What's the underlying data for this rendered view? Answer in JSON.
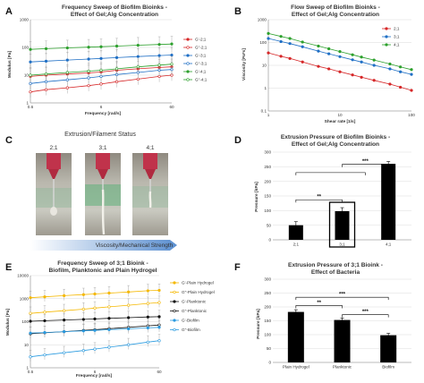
{
  "panels": {
    "A": {
      "letter": "A",
      "title_lines": [
        "Frequency Sweep of Biofilm Bioinks -",
        "Effect of Gel;Alg Concentration"
      ],
      "xlabel": "Frequency [rad/s]",
      "ylabel": "Modulus [Pa]"
    },
    "B": {
      "letter": "B",
      "title_lines": [
        "Flow Sweep of Biofilm Bioinks -",
        "Effect of Gel;Alg Concentration"
      ],
      "xlabel": "Shear rate [1/s]",
      "ylabel": "Viscosity [Pa*s]"
    },
    "C": {
      "letter": "C",
      "title": "Extrusion/Filament Status",
      "labels": [
        "2;1",
        "3;1",
        "4;1"
      ],
      "arrow_label": "Viscosity/Mechanical Strength"
    },
    "D": {
      "letter": "D",
      "title_lines": [
        "Extrusion Pressure of Biofilm Bioinks -",
        "Effect of Gel;Alg Concentration"
      ],
      "ylabel": "Pressure [kPa]",
      "sig": [
        "**",
        "***"
      ]
    },
    "E": {
      "letter": "E",
      "title_lines": [
        "Frequency Sweep of 3;1 Bioink -",
        "Biofilm, Planktonic and Plain Hydrogel"
      ],
      "xlabel": "Frequency [rad/s]",
      "ylabel": "Modulus [Pa]"
    },
    "F": {
      "letter": "F",
      "title_lines": [
        "Extrusion Pressure of 3;1 Bioink -",
        "Effect of Bacteria"
      ],
      "ylabel": "Pressure [kPa]",
      "sig": [
        "**",
        "***",
        "***"
      ]
    }
  },
  "colors": {
    "red": "#d62728",
    "blue": "#1f6fc5",
    "green": "#2ca02c",
    "gold": "#f5b800",
    "black": "#111111",
    "skyblue": "#2b9be0",
    "gray": "#444444"
  },
  "chart_data": [
    {
      "panel": "A",
      "type": "line",
      "x": [
        0.6,
        1,
        2,
        4,
        6,
        10,
        20,
        40,
        60
      ],
      "xlim": [
        0.6,
        60
      ],
      "xscale": "log",
      "xticks": [
        0.6,
        6,
        60
      ],
      "ylim": [
        1,
        1000
      ],
      "yscale": "log",
      "yticks": [
        1,
        10,
        100,
        1000
      ],
      "legend_position": "right",
      "series": [
        {
          "name": "G'-2;1",
          "color": "#d62728",
          "marker": "filled",
          "values": [
            9,
            10,
            11,
            12,
            13,
            15,
            17,
            19,
            20
          ]
        },
        {
          "name": "G''-2;1",
          "color": "#d62728",
          "marker": "open",
          "values": [
            2.5,
            3,
            3.5,
            4.2,
            4.8,
            5.8,
            7.2,
            9,
            10
          ]
        },
        {
          "name": "G'-3;1",
          "color": "#1f6fc5",
          "marker": "filled",
          "values": [
            30,
            32,
            35,
            38,
            40,
            43,
            47,
            51,
            53
          ]
        },
        {
          "name": "G''-3;1",
          "color": "#1f6fc5",
          "marker": "open",
          "values": [
            5,
            5.8,
            6.8,
            8,
            9,
            10.5,
            12.5,
            15,
            16
          ]
        },
        {
          "name": "G'-4;1",
          "color": "#2ca02c",
          "marker": "filled",
          "values": [
            85,
            90,
            96,
            102,
            106,
            112,
            120,
            128,
            133
          ]
        },
        {
          "name": "G''-4;1",
          "color": "#2ca02c",
          "marker": "open",
          "values": [
            10,
            11,
            12.5,
            14,
            15,
            17,
            20,
            23,
            25
          ]
        }
      ]
    },
    {
      "panel": "B",
      "type": "line",
      "x": [
        1,
        1.5,
        2,
        3,
        5,
        7,
        10,
        15,
        20,
        30,
        50,
        70,
        100
      ],
      "xlim": [
        1,
        100
      ],
      "xscale": "log",
      "xticks": [
        1,
        10,
        100
      ],
      "ylim": [
        0.1,
        1000
      ],
      "yscale": "log",
      "yticks": [
        0.1,
        1,
        10,
        100,
        1000
      ],
      "legend_position": "top-right",
      "series": [
        {
          "name": "2;1",
          "color": "#d62728",
          "values": [
            35,
            25,
            20,
            14,
            9,
            7,
            5.2,
            3.8,
            3,
            2.2,
            1.5,
            1.1,
            0.8
          ]
        },
        {
          "name": "3;1",
          "color": "#1f6fc5",
          "values": [
            150,
            110,
            90,
            65,
            42,
            32,
            24,
            17.5,
            14,
            10,
            7,
            5.2,
            4
          ]
        },
        {
          "name": "4;1",
          "color": "#2ca02c",
          "values": [
            250,
            185,
            150,
            105,
            70,
            53,
            40,
            29,
            23,
            17,
            11.5,
            8.5,
            6.5
          ]
        }
      ]
    },
    {
      "panel": "D",
      "type": "bar",
      "categories": [
        "2;1",
        "3;1",
        "4;1"
      ],
      "values": [
        50,
        98,
        260
      ],
      "errors": [
        12,
        12,
        8
      ],
      "ylim": [
        0,
        300
      ],
      "yticks": [
        0,
        50,
        100,
        150,
        200,
        250,
        300
      ],
      "highlighted_category": "3;1"
    },
    {
      "panel": "E",
      "type": "line",
      "x": [
        0.6,
        1,
        2,
        4,
        6,
        10,
        20,
        40,
        60
      ],
      "xlim": [
        0.6,
        60
      ],
      "xscale": "log",
      "xticks": [
        0.6,
        6,
        60
      ],
      "ylim": [
        1,
        10000
      ],
      "yscale": "log",
      "yticks": [
        1,
        10,
        100,
        1000,
        10000
      ],
      "legend_position": "right",
      "series": [
        {
          "name": "G'-Plain Hydrogel",
          "color": "#f5b800",
          "marker": "filled",
          "values": [
            1100,
            1200,
            1350,
            1500,
            1600,
            1750,
            1950,
            2200,
            2300
          ]
        },
        {
          "name": "G''-Plain Hydrogel",
          "color": "#f5b800",
          "marker": "open",
          "values": [
            230,
            260,
            300,
            350,
            390,
            440,
            520,
            620,
            680
          ]
        },
        {
          "name": "G'-Planktonic",
          "color": "#111111",
          "marker": "filled",
          "values": [
            105,
            110,
            118,
            126,
            132,
            140,
            150,
            160,
            165
          ]
        },
        {
          "name": "G''-Planktonic",
          "color": "#111111",
          "marker": "open",
          "values": [
            30,
            33,
            37,
            42,
            45,
            50,
            57,
            66,
            72
          ]
        },
        {
          "name": "G'-Biofilm",
          "color": "#2b9be0",
          "marker": "filled",
          "values": [
            32,
            34,
            37,
            40,
            42,
            45,
            49,
            54,
            57
          ]
        },
        {
          "name": "G''-Biofilm",
          "color": "#2b9be0",
          "marker": "open",
          "values": [
            3,
            3.6,
            4.5,
            5.6,
            6.5,
            7.8,
            10,
            13,
            15
          ]
        }
      ]
    },
    {
      "panel": "F",
      "type": "bar",
      "categories": [
        "Plain Hydrogel",
        "Planktonic",
        "Biofilm"
      ],
      "values": [
        182,
        153,
        98
      ],
      "errors": [
        8,
        7,
        7
      ],
      "ylim": [
        0,
        300
      ],
      "yticks": [
        0,
        50,
        100,
        150,
        200,
        250,
        300
      ]
    }
  ]
}
